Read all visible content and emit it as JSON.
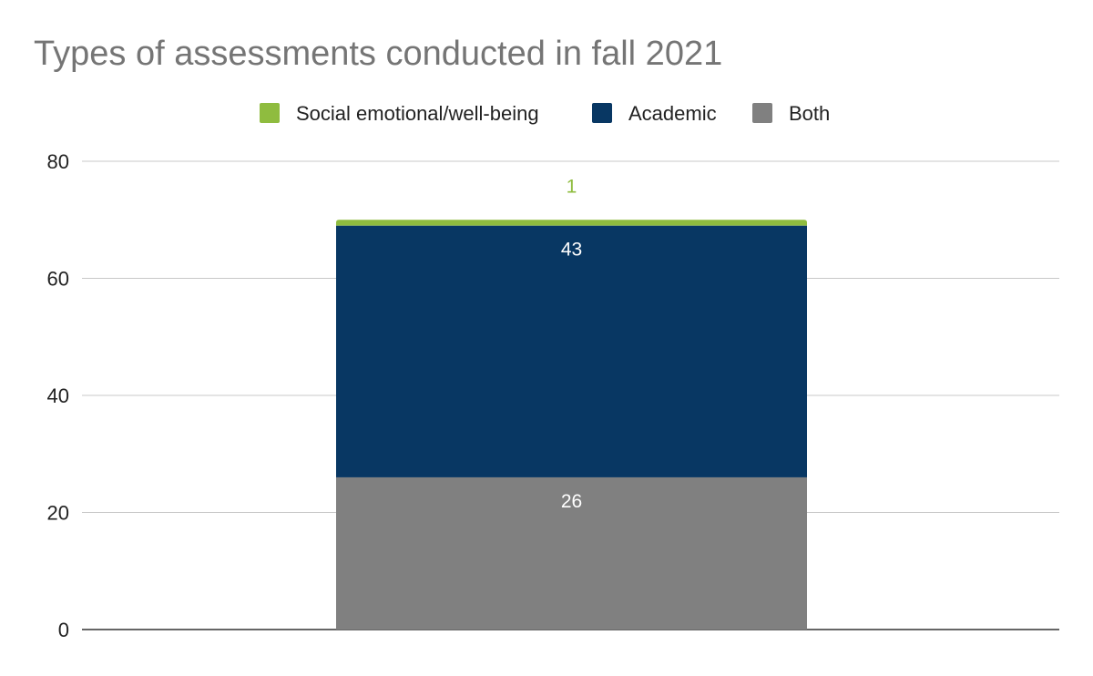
{
  "chart_data": {
    "type": "bar",
    "stacked": true,
    "title": "Types of assessments conducted in fall 2021",
    "xlabel": "",
    "ylabel": "",
    "categories": [
      ""
    ],
    "ylim": [
      0,
      80
    ],
    "y_ticks": [
      0,
      20,
      40,
      60,
      80
    ],
    "grid": true,
    "legend_position": "top",
    "series": [
      {
        "name": "Both",
        "values": [
          26
        ],
        "color": "#808080",
        "label_color": "#ffffff"
      },
      {
        "name": "Academic",
        "values": [
          43
        ],
        "color": "#083763",
        "label_color": "#ffffff"
      },
      {
        "name": "Social emotional/well-being",
        "values": [
          1
        ],
        "color": "#8fbc3f",
        "label_color": "#8fbc3f"
      }
    ],
    "legend_order": [
      "Social emotional/well-being",
      "Academic",
      "Both"
    ]
  }
}
